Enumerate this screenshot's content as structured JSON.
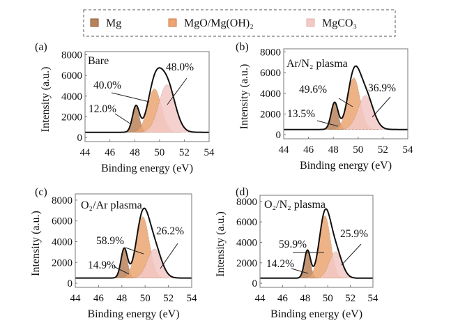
{
  "legend": {
    "items": [
      {
        "label": "Mg",
        "color": "#b8825a"
      },
      {
        "label": "MgO/Mg(OH)₂",
        "color": "#eba472"
      },
      {
        "label": "MgCO₃",
        "color": "#f2c9c6"
      }
    ]
  },
  "chart_data": [
    {
      "type": "area",
      "panel_label": "(a)",
      "title": "Bare",
      "xlabel": "Binding energy (eV)",
      "ylabel": "Intensity (a.u.)",
      "xlim": [
        44,
        54
      ],
      "ylim": [
        -400,
        8300
      ],
      "xticks": [
        44,
        46,
        48,
        50,
        52,
        54
      ],
      "yticks": [
        0,
        2000,
        4000,
        6000,
        8000
      ],
      "baseline": 500,
      "components": [
        {
          "name": "Mg",
          "center": 48.1,
          "height": 2500,
          "sigma": 0.28,
          "percent": "12.0%"
        },
        {
          "name": "MgO/Mg(OH)₂",
          "center": 49.6,
          "height": 4200,
          "sigma": 0.55,
          "percent": "40.0%"
        },
        {
          "name": "MgCO₃",
          "center": 50.6,
          "height": 4600,
          "sigma": 0.65,
          "percent": "48.0%"
        }
      ]
    },
    {
      "type": "area",
      "panel_label": "(b)",
      "title": "Ar/N₂ plasma",
      "xlabel": "Binding energy (eV)",
      "ylabel": "Intensity (a.u.)",
      "xlim": [
        44,
        54
      ],
      "ylim": [
        -400,
        8300
      ],
      "xticks": [
        44,
        46,
        48,
        50,
        52,
        54
      ],
      "yticks": [
        0,
        2000,
        4000,
        6000,
        8000
      ],
      "baseline": 500,
      "components": [
        {
          "name": "Mg",
          "center": 48.1,
          "height": 2600,
          "sigma": 0.28,
          "percent": "13.5%"
        },
        {
          "name": "MgO/Mg(OH)₂",
          "center": 49.65,
          "height": 5000,
          "sigma": 0.5,
          "percent": "49.6%"
        },
        {
          "name": "MgCO₃",
          "center": 50.6,
          "height": 3300,
          "sigma": 0.6,
          "percent": "36.9%"
        }
      ]
    },
    {
      "type": "area",
      "panel_label": "(c)",
      "title": "O₂/Ar plasma",
      "xlabel": "Binding energy (eV)",
      "ylabel": "Intensity (a.u.)",
      "xlim": [
        44,
        54
      ],
      "ylim": [
        -400,
        8600
      ],
      "xticks": [
        44,
        46,
        48,
        50,
        52,
        54
      ],
      "yticks": [
        0,
        2000,
        4000,
        6000,
        8000
      ],
      "baseline": 500,
      "components": [
        {
          "name": "Mg",
          "center": 48.2,
          "height": 2800,
          "sigma": 0.28,
          "percent": "14.9%"
        },
        {
          "name": "MgO/Mg(OH)₂",
          "center": 49.8,
          "height": 5900,
          "sigma": 0.55,
          "percent": "58.9%"
        },
        {
          "name": "MgCO₃",
          "center": 50.8,
          "height": 2800,
          "sigma": 0.6,
          "percent": "26.2%"
        }
      ]
    },
    {
      "type": "area",
      "panel_label": "(d)",
      "title": "O₂/N₂ plasma",
      "xlabel": "Binding energy (eV)",
      "ylabel": "Intensity (a.u.)",
      "xlim": [
        44,
        54
      ],
      "ylim": [
        -400,
        8600
      ],
      "xticks": [
        44,
        46,
        48,
        50,
        52,
        54
      ],
      "yticks": [
        0,
        2000,
        4000,
        6000,
        8000
      ],
      "baseline": 500,
      "components": [
        {
          "name": "Mg",
          "center": 48.2,
          "height": 2700,
          "sigma": 0.27,
          "percent": "14.2%"
        },
        {
          "name": "MgO/Mg(OH)₂",
          "center": 49.75,
          "height": 6100,
          "sigma": 0.5,
          "percent": "59.9%"
        },
        {
          "name": "MgCO₃",
          "center": 50.7,
          "height": 2600,
          "sigma": 0.55,
          "percent": "25.9%"
        }
      ]
    }
  ]
}
